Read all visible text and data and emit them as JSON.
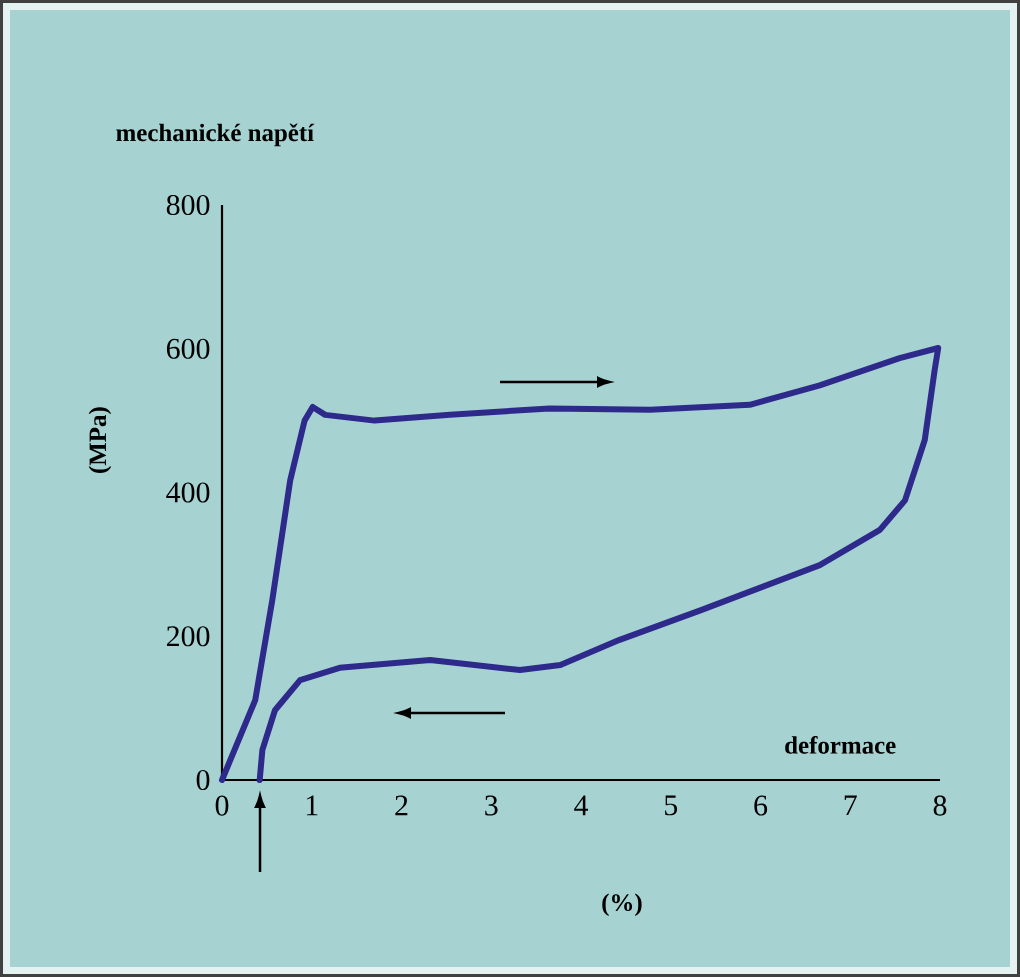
{
  "chart_data": {
    "type": "line",
    "xlabel": "deformace",
    "ylabel": "mechanické napětí",
    "annotations": [
      "(MPa)",
      "(%)"
    ],
    "xlim": [
      0,
      8
    ],
    "ylim": [
      0,
      800
    ],
    "xticks": [
      0,
      1,
      2,
      3,
      4,
      5,
      6,
      7,
      8
    ],
    "yticks": [
      0,
      200,
      400,
      600,
      800
    ],
    "series": [
      {
        "color": "#2e2a8c",
        "x": [
          0,
          0.37,
          0.56,
          0.76,
          0.92,
          1.01,
          1.15,
          1.7,
          2.54,
          3.65,
          4.77,
          5.88,
          6.66,
          7.55,
          7.98,
          7.94,
          7.83,
          7.61,
          7.33,
          6.66,
          5.33,
          4.43,
          3.77,
          3.32,
          2.32,
          1.31,
          0.87,
          0.59,
          0.45,
          0.42
        ],
        "values": [
          0,
          111,
          250,
          417,
          500,
          519,
          508,
          500,
          508,
          517,
          515,
          522,
          549,
          587,
          601,
          570,
          473,
          389,
          348,
          299,
          236,
          195,
          160,
          153,
          167,
          156,
          139,
          97,
          42,
          0
        ]
      }
    ]
  }
}
